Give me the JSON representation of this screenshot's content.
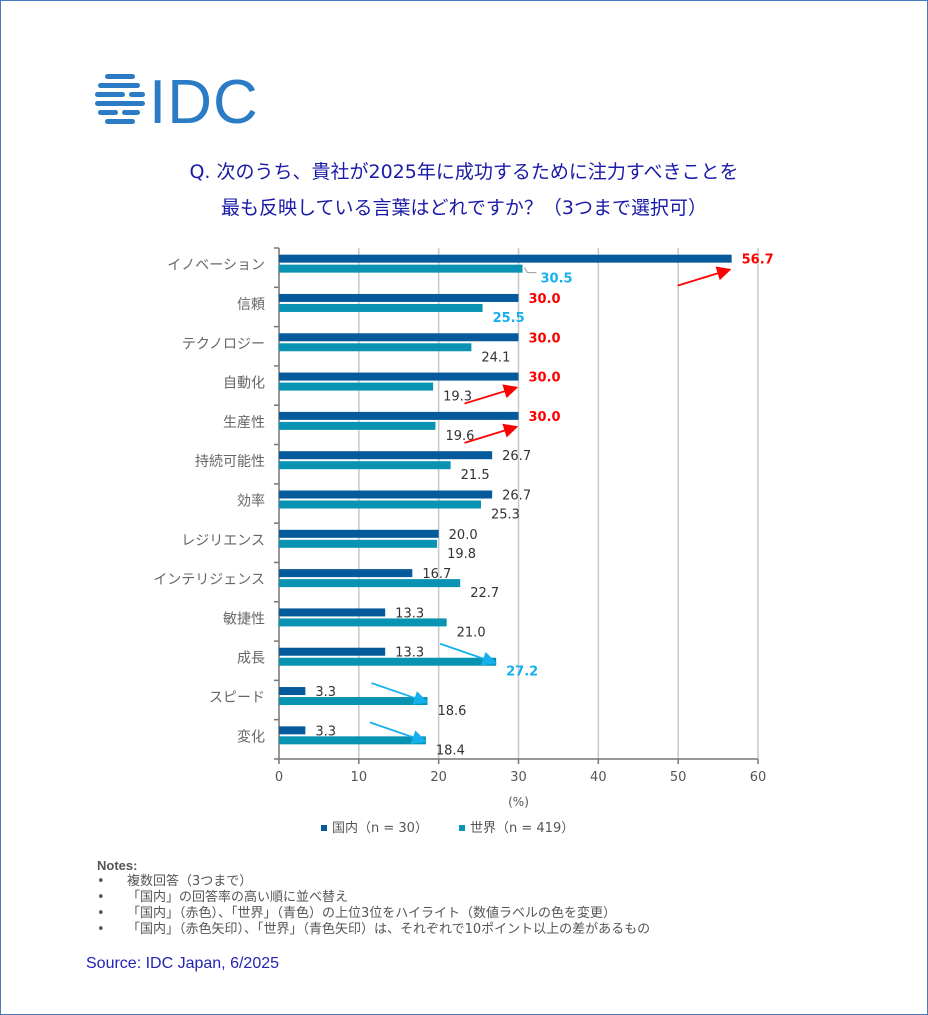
{
  "logo": {
    "text": "IDC",
    "color": "#2b7cc4"
  },
  "title": {
    "line1": "Q. 次のうち、貴社が2025年に成功するために注力すべきことを",
    "line2": "最も反映している言葉はどれですか？（3つまで選択可）"
  },
  "chart_data": {
    "type": "bar",
    "orientation": "horizontal",
    "title": "Q. 次のうち、貴社が2025年に成功するために注力すべきことを最も反映している言葉はどれですか？（3つまで選択可）",
    "xlabel": "(%)",
    "ylabel": "",
    "xlim": [
      0,
      60
    ],
    "xticks": [
      0,
      10,
      20,
      30,
      40,
      50,
      60
    ],
    "grid": true,
    "legend_position": "bottom-center",
    "categories": [
      "イノベーション",
      "信頼",
      "テクノロジー",
      "自動化",
      "生産性",
      "持続可能性",
      "効率",
      "レジリエンス",
      "インテリジェンス",
      "敏捷性",
      "成長",
      "スピード",
      "変化"
    ],
    "series": [
      {
        "name": "国内（n = 30）",
        "color": "#055a9b",
        "values": [
          56.7,
          30.0,
          30.0,
          30.0,
          30.0,
          26.7,
          26.7,
          20.0,
          16.7,
          13.3,
          13.3,
          3.3,
          3.3
        ],
        "labels": [
          "56.7",
          "30.0",
          "30.0",
          "30.0",
          "30.0",
          "26.7",
          "26.7",
          "20.0",
          "16.7",
          "13.3",
          "13.3",
          "3.3",
          "3.3"
        ],
        "highlight": [
          true,
          true,
          true,
          true,
          true,
          false,
          false,
          false,
          false,
          false,
          false,
          false,
          false
        ],
        "highlight_color": "#ff0000"
      },
      {
        "name": "世界（n = 419）",
        "color": "#0993b2",
        "values": [
          30.5,
          25.5,
          24.1,
          19.3,
          19.6,
          21.5,
          25.3,
          19.8,
          22.7,
          21.0,
          27.2,
          18.6,
          18.4
        ],
        "labels": [
          "30.5",
          "25.5",
          "24.1",
          "19.3",
          "19.6",
          "21.5",
          "25.3",
          "19.8",
          "22.7",
          "21.0",
          "27.2",
          "18.6",
          "18.4"
        ],
        "highlight": [
          true,
          true,
          false,
          false,
          false,
          false,
          false,
          false,
          false,
          false,
          true,
          false,
          false
        ],
        "highlight_color": "#16b0ee"
      }
    ],
    "annotations": [
      {
        "category": "イノベーション",
        "type": "arrow",
        "color": "#ff0000",
        "meaning": "国内 ≥10pt higher"
      },
      {
        "category": "自動化",
        "type": "arrow",
        "color": "#ff0000",
        "meaning": "国内 ≥10pt higher"
      },
      {
        "category": "生産性",
        "type": "arrow",
        "color": "#ff0000",
        "meaning": "国内 ≥10pt higher"
      },
      {
        "category": "成長",
        "type": "arrow",
        "color": "#16b0ee",
        "meaning": "世界 ≥10pt higher"
      },
      {
        "category": "スピード",
        "type": "arrow",
        "color": "#16b0ee",
        "meaning": "世界 ≥10pt higher"
      },
      {
        "category": "変化",
        "type": "arrow",
        "color": "#16b0ee",
        "meaning": "世界 ≥10pt higher"
      }
    ],
    "default_label_color": "#333333"
  },
  "notes": {
    "header": "Notes:",
    "bullet": "•",
    "items": [
      "複数回答（3つまで）",
      "「国内」の回答率の高い順に並べ替え",
      "「国内」（赤色）、「世界」（青色）の上位3位をハイライト（数値ラベルの色を変更）",
      "「国内」（赤色矢印）、「世界」（青色矢印）は、それぞれで10ポイント以上の差があるもの"
    ]
  },
  "source": "Source: IDC Japan, 6/2025"
}
